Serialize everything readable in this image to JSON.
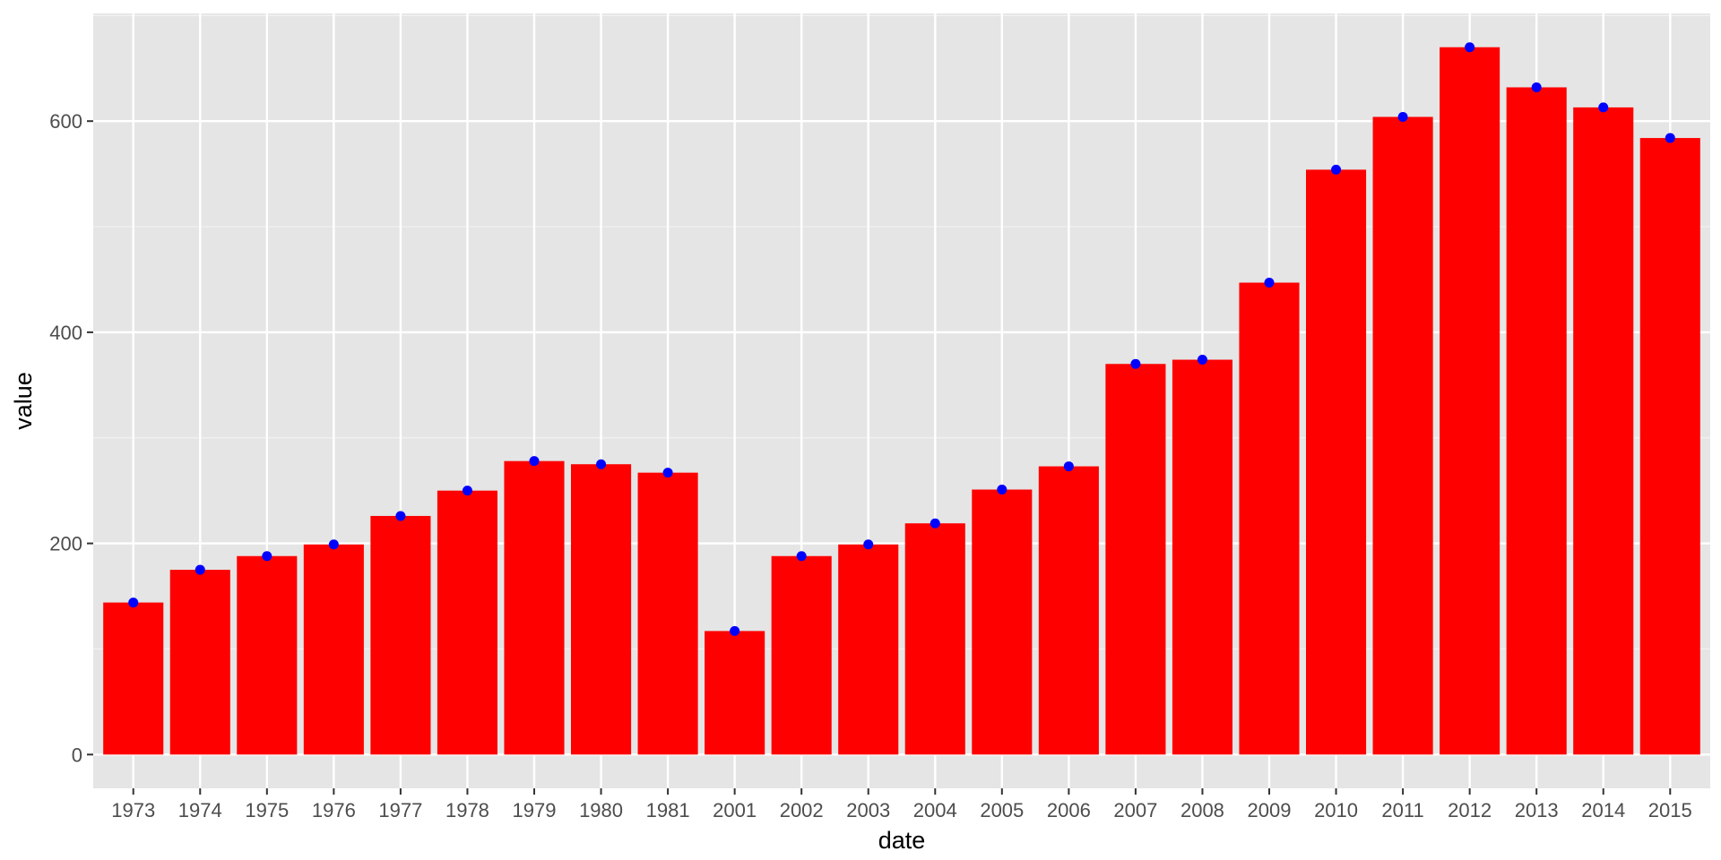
{
  "chart_data": {
    "type": "bar",
    "title": "",
    "xlabel": "date",
    "ylabel": "value",
    "categories": [
      "1973",
      "1974",
      "1975",
      "1976",
      "1977",
      "1978",
      "1979",
      "1980",
      "1981",
      "2001",
      "2002",
      "2003",
      "2004",
      "2005",
      "2006",
      "2007",
      "2008",
      "2009",
      "2010",
      "2011",
      "2012",
      "2013",
      "2014",
      "2015"
    ],
    "values": [
      144,
      175,
      188,
      199,
      226,
      250,
      278,
      275,
      267,
      117,
      188,
      199,
      219,
      251,
      273,
      370,
      374,
      447,
      554,
      604,
      670,
      632,
      613,
      584
    ],
    "ylim": [
      -32,
      702
    ],
    "yticks": [
      0,
      200,
      400,
      600
    ],
    "ytick_labels": [
      "0",
      "200",
      "400",
      "600"
    ],
    "grid": true,
    "legend": "none",
    "colors": {
      "bar": "#FF0000",
      "point": "#0000FF",
      "panel_background": "#E5E5E5",
      "grid_major": "#FFFFFF",
      "grid_minor": "#F2F2F2",
      "tick_text": "#4D4D4D",
      "tick_mark": "#333333"
    }
  }
}
